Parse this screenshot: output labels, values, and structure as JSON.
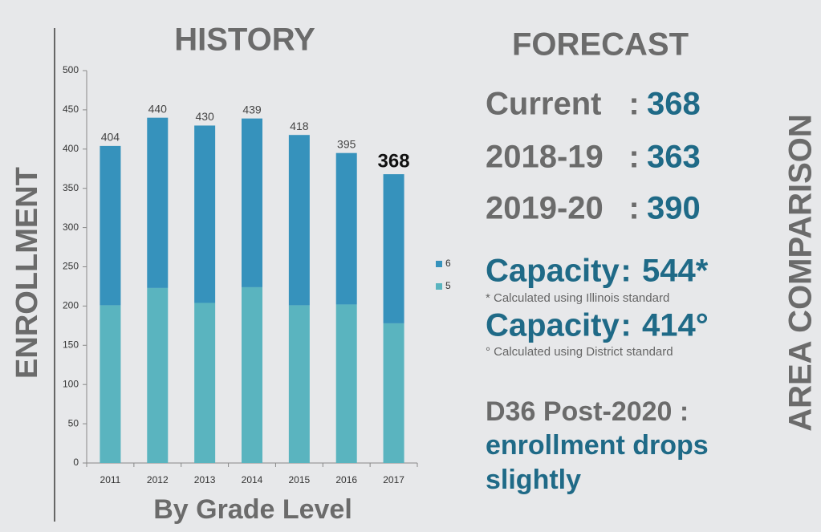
{
  "chart_data": {
    "type": "bar",
    "stacked": true,
    "title": "HISTORY",
    "y_label": "ENROLLMENT",
    "x_label": "By Grade Level",
    "categories": [
      "2011",
      "2012",
      "2013",
      "2014",
      "2015",
      "2016",
      "2017"
    ],
    "series": [
      {
        "name": "5",
        "color": "#5ab4bf",
        "values": [
          201,
          223,
          204,
          224,
          201,
          202,
          178
        ]
      },
      {
        "name": "6",
        "color": "#3692bc",
        "values": [
          203,
          217,
          226,
          215,
          217,
          193,
          190
        ]
      }
    ],
    "totals": [
      404,
      440,
      430,
      439,
      418,
      395,
      368
    ],
    "ylim": [
      0,
      500
    ],
    "yticks": [
      0,
      50,
      100,
      150,
      200,
      250,
      300,
      350,
      400,
      450,
      500
    ],
    "grid": false,
    "legend": "right"
  },
  "forecast": {
    "title": "FORECAST",
    "separator": ":",
    "items": [
      {
        "label": "Current",
        "value": 368
      },
      {
        "label": "2018-19",
        "value": 363
      },
      {
        "label": "2019-20",
        "value": 390
      }
    ],
    "capacity": [
      {
        "label": "Capacity",
        "value": "544*",
        "note": "* Calculated using Illinois standard"
      },
      {
        "label": "Capacity",
        "value": "414°",
        "note": "° Calculated using District standard"
      }
    ],
    "outlook": {
      "heading": "D36 Post-2020 :",
      "lines": [
        "enrollment drops",
        "slightly"
      ]
    }
  },
  "side_label": "AREA COMPARISON"
}
